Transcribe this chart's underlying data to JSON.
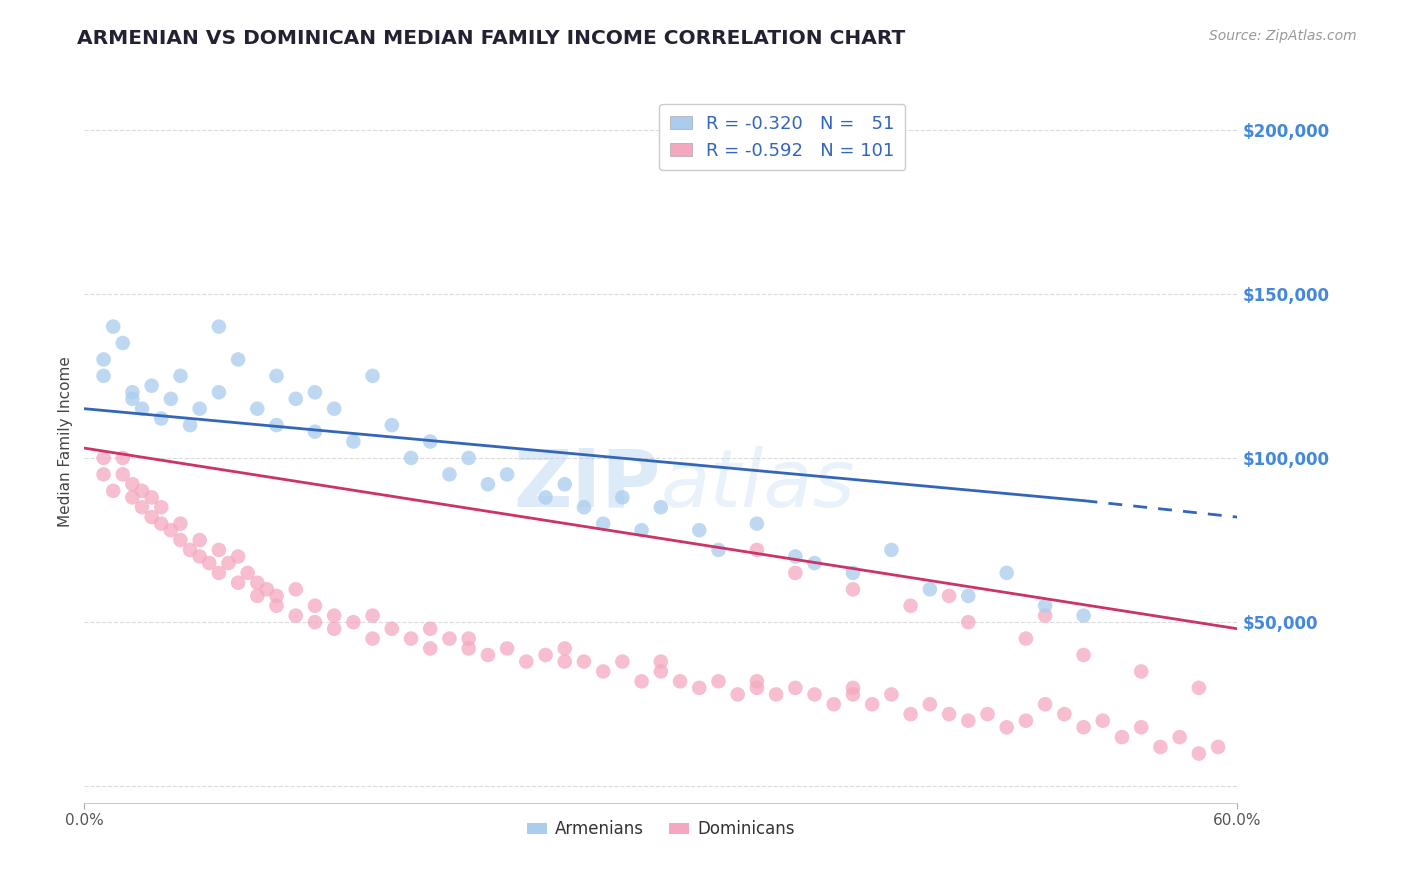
{
  "title": "ARMENIAN VS DOMINICAN MEDIAN FAMILY INCOME CORRELATION CHART",
  "source": "Source: ZipAtlas.com",
  "ylabel": "Median Family Income",
  "yticks": [
    0,
    50000,
    100000,
    150000,
    200000
  ],
  "ytick_labels": [
    "",
    "$50,000",
    "$100,000",
    "$150,000",
    "$200,000"
  ],
  "xmin": 0.0,
  "xmax": 0.6,
  "ymin": -5000,
  "ymax": 215000,
  "armenian_color": "#aaccee",
  "dominican_color": "#f4a8c0",
  "armenian_line_color": "#3366bb",
  "dominican_line_color": "#cc3366",
  "background_color": "#ffffff",
  "grid_color": "#cccccc",
  "yaxis_label_color": "#4488dd",
  "source_color": "#999999",
  "armenian_line": {
    "x0": 0.0,
    "y0": 115000,
    "x1": 0.52,
    "y1": 87000,
    "x1d": 0.6,
    "y1d": 82000
  },
  "dominican_line": {
    "x0": 0.0,
    "y0": 103000,
    "x1": 0.6,
    "y1": 48000
  },
  "armenian_scatter_x": [
    0.01,
    0.01,
    0.015,
    0.02,
    0.025,
    0.025,
    0.03,
    0.035,
    0.04,
    0.045,
    0.05,
    0.055,
    0.06,
    0.07,
    0.07,
    0.08,
    0.09,
    0.1,
    0.1,
    0.11,
    0.12,
    0.12,
    0.13,
    0.14,
    0.15,
    0.16,
    0.17,
    0.18,
    0.19,
    0.2,
    0.21,
    0.22,
    0.24,
    0.25,
    0.26,
    0.27,
    0.28,
    0.29,
    0.3,
    0.32,
    0.33,
    0.35,
    0.37,
    0.38,
    0.4,
    0.42,
    0.44,
    0.46,
    0.48,
    0.5,
    0.52
  ],
  "armenian_scatter_y": [
    130000,
    125000,
    140000,
    135000,
    120000,
    118000,
    115000,
    122000,
    112000,
    118000,
    125000,
    110000,
    115000,
    140000,
    120000,
    130000,
    115000,
    125000,
    110000,
    118000,
    120000,
    108000,
    115000,
    105000,
    125000,
    110000,
    100000,
    105000,
    95000,
    100000,
    92000,
    95000,
    88000,
    92000,
    85000,
    80000,
    88000,
    78000,
    85000,
    78000,
    72000,
    80000,
    70000,
    68000,
    65000,
    72000,
    60000,
    58000,
    65000,
    55000,
    52000
  ],
  "dominican_scatter_x": [
    0.01,
    0.01,
    0.015,
    0.02,
    0.02,
    0.025,
    0.025,
    0.03,
    0.03,
    0.035,
    0.035,
    0.04,
    0.04,
    0.045,
    0.05,
    0.05,
    0.055,
    0.06,
    0.06,
    0.065,
    0.07,
    0.07,
    0.075,
    0.08,
    0.08,
    0.085,
    0.09,
    0.09,
    0.095,
    0.1,
    0.1,
    0.11,
    0.11,
    0.12,
    0.12,
    0.13,
    0.13,
    0.14,
    0.15,
    0.15,
    0.16,
    0.17,
    0.18,
    0.18,
    0.19,
    0.2,
    0.2,
    0.21,
    0.22,
    0.23,
    0.24,
    0.25,
    0.25,
    0.26,
    0.27,
    0.28,
    0.29,
    0.3,
    0.3,
    0.31,
    0.32,
    0.33,
    0.34,
    0.35,
    0.35,
    0.36,
    0.37,
    0.38,
    0.39,
    0.4,
    0.4,
    0.41,
    0.42,
    0.43,
    0.44,
    0.45,
    0.46,
    0.47,
    0.48,
    0.49,
    0.5,
    0.51,
    0.52,
    0.53,
    0.54,
    0.55,
    0.56,
    0.57,
    0.58,
    0.59,
    0.37,
    0.4,
    0.43,
    0.46,
    0.49,
    0.52,
    0.55,
    0.58,
    0.35,
    0.45,
    0.5
  ],
  "dominican_scatter_y": [
    95000,
    100000,
    90000,
    100000,
    95000,
    88000,
    92000,
    90000,
    85000,
    88000,
    82000,
    85000,
    80000,
    78000,
    80000,
    75000,
    72000,
    75000,
    70000,
    68000,
    72000,
    65000,
    68000,
    70000,
    62000,
    65000,
    62000,
    58000,
    60000,
    58000,
    55000,
    60000,
    52000,
    55000,
    50000,
    52000,
    48000,
    50000,
    52000,
    45000,
    48000,
    45000,
    48000,
    42000,
    45000,
    45000,
    42000,
    40000,
    42000,
    38000,
    40000,
    42000,
    38000,
    38000,
    35000,
    38000,
    32000,
    35000,
    38000,
    32000,
    30000,
    32000,
    28000,
    32000,
    30000,
    28000,
    30000,
    28000,
    25000,
    30000,
    28000,
    25000,
    28000,
    22000,
    25000,
    22000,
    20000,
    22000,
    18000,
    20000,
    25000,
    22000,
    18000,
    20000,
    15000,
    18000,
    12000,
    15000,
    10000,
    12000,
    65000,
    60000,
    55000,
    50000,
    45000,
    40000,
    35000,
    30000,
    72000,
    58000,
    52000
  ]
}
